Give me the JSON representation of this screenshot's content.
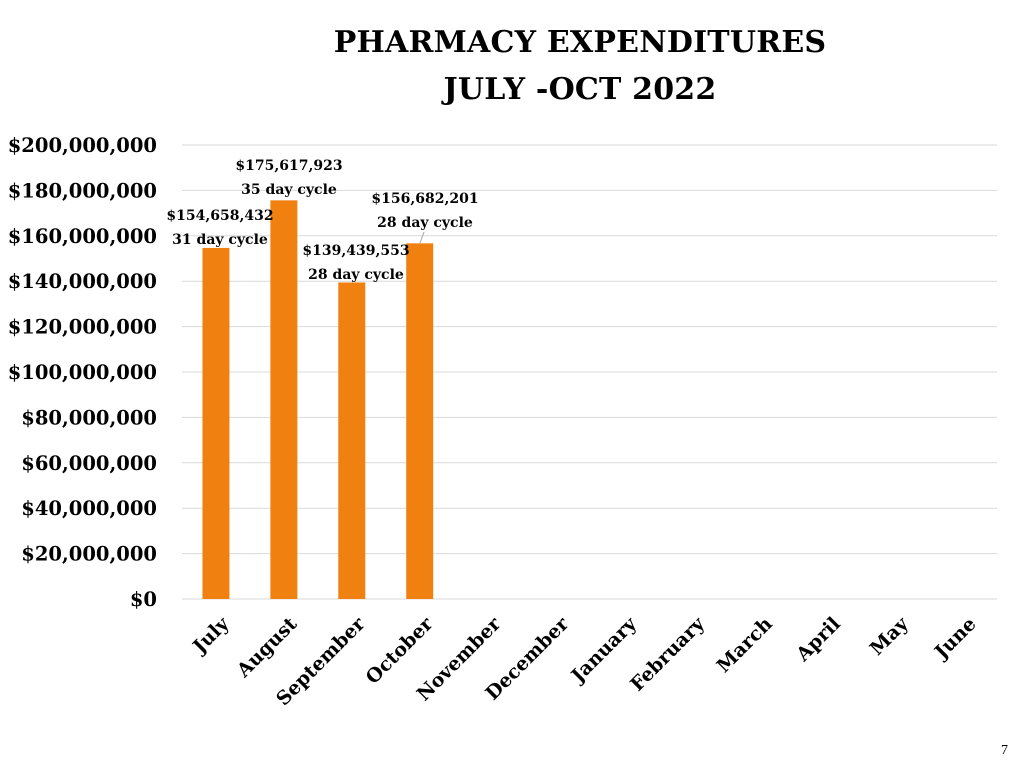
{
  "slide": {
    "page_number": "7"
  },
  "colors": {
    "bar": "#f0800f",
    "grid": "#d9d9d9",
    "text": "#000000"
  },
  "chart_data": {
    "type": "bar",
    "title": "PHARMACY EXPENDITURES",
    "subtitle": "JULY -OCT 2022",
    "xlabel": "",
    "ylabel": "",
    "categories": [
      "July",
      "August",
      "September",
      "October",
      "November",
      "December",
      "January",
      "February",
      "March",
      "April",
      "May",
      "June"
    ],
    "values": [
      154658432,
      175617923,
      139439553,
      156682201,
      null,
      null,
      null,
      null,
      null,
      null,
      null,
      null
    ],
    "ylim": [
      0,
      200000000
    ],
    "ytick_labels": [
      "$0",
      "$20,000,000",
      "$40,000,000",
      "$60,000,000",
      "$80,000,000",
      "$100,000,000",
      "$120,000,000",
      "$140,000,000",
      "$160,000,000",
      "$180,000,000",
      "$200,000,000"
    ],
    "ytick_values": [
      0,
      20000000,
      40000000,
      60000000,
      80000000,
      100000000,
      120000000,
      140000000,
      160000000,
      180000000,
      200000000
    ],
    "grid": true,
    "data_labels": [
      {
        "category": "July",
        "amount": "$154,658,432",
        "note": "31 day cycle"
      },
      {
        "category": "August",
        "amount": "$175,617,923",
        "note": "35 day cycle"
      },
      {
        "category": "September",
        "amount": "$139,439,553",
        "note": "28 day cycle"
      },
      {
        "category": "October",
        "amount": "$156,682,201",
        "note": "28 day cycle"
      }
    ]
  }
}
